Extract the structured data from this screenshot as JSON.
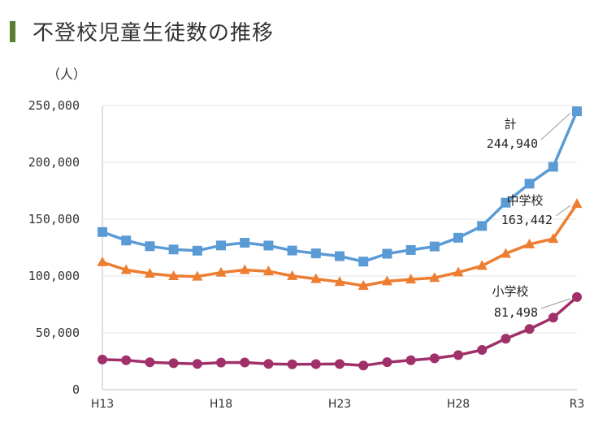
{
  "page": {
    "title": "不登校児童生徒数の推移",
    "unit": "（人）"
  },
  "chart_data": {
    "type": "line",
    "title": "不登校児童生徒数の推移",
    "ylabel": "（人）",
    "ylim": [
      0,
      250000
    ],
    "y_ticks": [
      0,
      50000,
      100000,
      150000,
      200000,
      250000
    ],
    "y_tick_labels": [
      "0",
      "50,000",
      "100,000",
      "150,000",
      "200,000",
      "250,000"
    ],
    "x": [
      "H13",
      "H14",
      "H15",
      "H16",
      "H17",
      "H18",
      "H19",
      "H20",
      "H21",
      "H22",
      "H23",
      "H24",
      "H25",
      "H26",
      "H27",
      "H28",
      "H29",
      "H30",
      "R1",
      "R2",
      "R3"
    ],
    "x_tick_labels": [
      "H13",
      "",
      "",
      "",
      "",
      "H18",
      "",
      "",
      "",
      "",
      "H23",
      "",
      "",
      "",
      "",
      "H28",
      "",
      "",
      "",
      "",
      "R3"
    ],
    "series": [
      {
        "name": "計",
        "color": "#5b9bd5",
        "marker": "square",
        "values": [
          138722,
          131252,
          126226,
          123358,
          122287,
          126894,
          129255,
          126805,
          122432,
          119891,
          117458,
          112689,
          119617,
          122897,
          125991,
          133683,
          144031,
          164528,
          181272,
          196127,
          244940
        ]
      },
      {
        "name": "中学校",
        "color": "#ed7d31",
        "marker": "triangle",
        "values": [
          112211,
          105383,
          102149,
          100040,
          99578,
          103069,
          105328,
          104153,
          100105,
          97428,
          94836,
          91446,
          95442,
          97033,
          98408,
          103235,
          108999,
          119687,
          127922,
          132777,
          163442
        ]
      },
      {
        "name": "小学校",
        "color": "#a0306a",
        "marker": "circle",
        "values": [
          26511,
          25869,
          24077,
          23318,
          22709,
          23825,
          23927,
          22652,
          22327,
          22463,
          22622,
          21243,
          24175,
          25864,
          27583,
          30448,
          35032,
          44841,
          53350,
          63350,
          81498
        ]
      }
    ],
    "annotations": [
      {
        "series": "計",
        "label": "計",
        "value_text": "244,940"
      },
      {
        "series": "中学校",
        "label": "中学校",
        "value_text": "163,442"
      },
      {
        "series": "小学校",
        "label": "小学校",
        "value_text": "81,498"
      }
    ]
  }
}
